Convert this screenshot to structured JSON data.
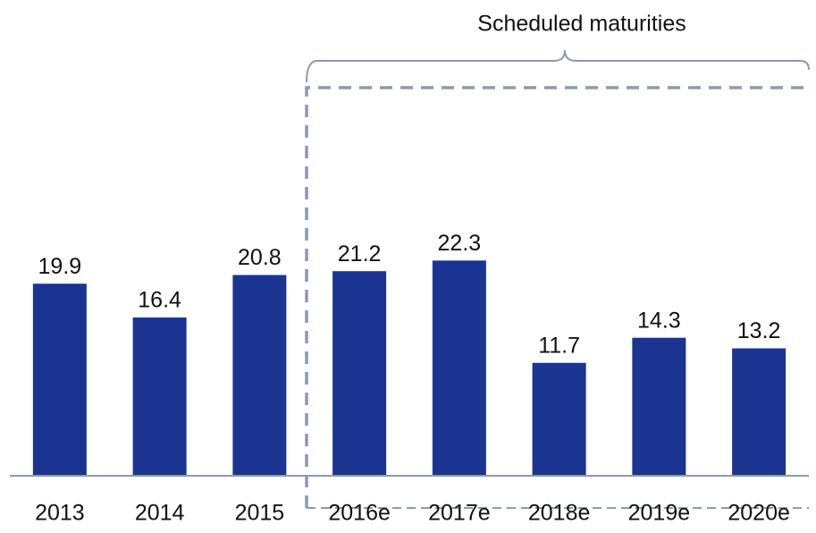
{
  "chart_data": {
    "type": "bar",
    "annotation": "Scheduled maturities",
    "categories": [
      "2013",
      "2014",
      "2015",
      "2016e",
      "2017e",
      "2018e",
      "2019e",
      "2020e"
    ],
    "values": [
      19.9,
      16.4,
      20.8,
      21.2,
      22.3,
      11.7,
      14.3,
      13.2
    ],
    "color": "#1b3492",
    "ylim": [
      0,
      24
    ]
  }
}
